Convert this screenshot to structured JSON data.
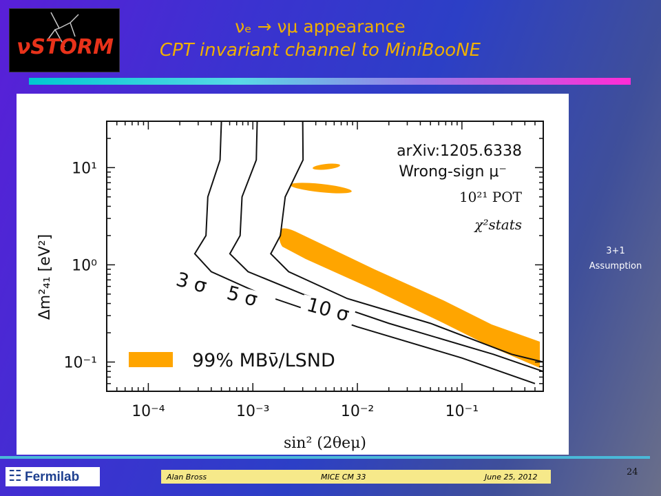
{
  "logo": {
    "text": "νSTORM"
  },
  "title": {
    "line1": "νₑ → νμ appearance",
    "line2": "CPT invariant channel to MiniBooNE"
  },
  "side_note": {
    "line1": "3+1",
    "line2": "Assumption"
  },
  "footer": {
    "author": "Alan Bross",
    "meeting": "MICE CM 33",
    "date": "June 25, 2012"
  },
  "page_number": "24",
  "fermilab": {
    "name": "Fermilab"
  },
  "colors": {
    "title": "#f0b000",
    "band": "#ffa500",
    "footer_bg": "#f6e98a"
  },
  "chart_data": {
    "type": "line",
    "log_x": true,
    "log_y": true,
    "xlim": [
      4e-05,
      0.6
    ],
    "ylim": [
      0.05,
      30
    ],
    "x_ticks": [
      {
        "v": 0.0001,
        "label": "10⁻⁴"
      },
      {
        "v": 0.001,
        "label": "10⁻³"
      },
      {
        "v": 0.01,
        "label": "10⁻²"
      },
      {
        "v": 0.1,
        "label": "10⁻¹"
      }
    ],
    "y_ticks": [
      {
        "v": 0.1,
        "label": "10⁻¹"
      },
      {
        "v": 1,
        "label": "10⁰"
      },
      {
        "v": 10,
        "label": "10¹"
      }
    ],
    "xlabel": "sin² (2θeμ)",
    "ylabel": "Δm²₄₁ [eV²]",
    "annotations": {
      "ref": "arXiv:1205.6338",
      "sign": "Wrong-sign μ⁻",
      "pot": "10²¹ POT",
      "chi": "χ²stats"
    },
    "series": [
      {
        "name": "3 σ",
        "points": [
          [
            0.0005,
            30
          ],
          [
            0.00045,
            12
          ],
          [
            0.0004,
            5
          ],
          [
            0.00033,
            2
          ],
          [
            0.0003,
            1.3
          ],
          [
            0.0004,
            0.85
          ],
          [
            0.0012,
            0.5
          ],
          [
            0.01,
            0.23
          ],
          [
            0.1,
            0.11
          ],
          [
            0.5,
            0.06
          ]
        ]
      },
      {
        "name": "5 σ",
        "points": [
          [
            0.0011,
            30
          ],
          [
            0.001,
            12
          ],
          [
            0.00085,
            5
          ],
          [
            0.0007,
            2
          ],
          [
            0.00065,
            1.3
          ],
          [
            0.0009,
            0.85
          ],
          [
            0.003,
            0.5
          ],
          [
            0.02,
            0.25
          ],
          [
            0.2,
            0.12
          ],
          [
            0.6,
            0.08
          ]
        ]
      },
      {
        "name": "10 σ",
        "points": [
          [
            0.003,
            30
          ],
          [
            0.0028,
            12
          ],
          [
            0.0022,
            5
          ],
          [
            0.0017,
            2
          ],
          [
            0.0016,
            1.3
          ],
          [
            0.0022,
            0.85
          ],
          [
            0.008,
            0.45
          ],
          [
            0.05,
            0.25
          ],
          [
            0.3,
            0.12
          ],
          [
            0.6,
            0.1
          ]
        ]
      }
    ],
    "legend": {
      "label": "99% MBν̄/LSND"
    }
  }
}
